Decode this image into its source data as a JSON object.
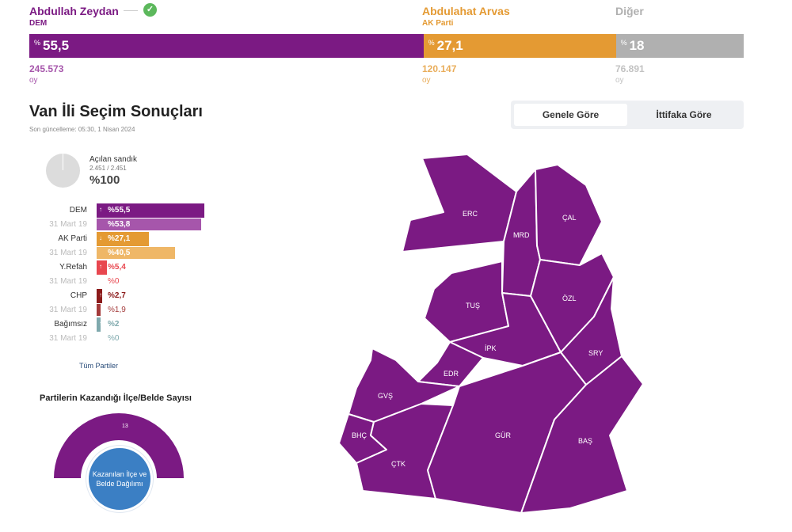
{
  "candidates": [
    {
      "name": "Abdullah Zeydan",
      "party": "DEM",
      "pct": "55,5",
      "pct_sign": "%",
      "votes": "245.573",
      "votes_unit": "oy",
      "color": "#7b1a83",
      "share": 55.5
    },
    {
      "name": "Abdulahat Arvas",
      "party": "AK Parti",
      "pct": "27,1",
      "pct_sign": "%",
      "votes": "120.147",
      "votes_unit": "oy",
      "color": "#e49a33",
      "share": 27.1
    },
    {
      "name": "Diğer",
      "party": "",
      "pct": "18",
      "pct_sign": "%",
      "votes": "76.891",
      "votes_unit": "oy",
      "color": "#b0b0b0",
      "share": 18
    }
  ],
  "winner_check": "✓",
  "title": "Van İli Seçim Sonuçları",
  "updated": "Son güncelleme: 05:30, 1 Nisan 2024",
  "toggle": {
    "general": "Genele Göre",
    "alliance": "İttifaka Göre"
  },
  "ballot_box": {
    "label": "Açılan sandık",
    "count": "2.451 / 2.451",
    "pct": "%100"
  },
  "parties": [
    {
      "name": "DEM",
      "pct": "%55,5",
      "prev_label": "31 Mart 19",
      "prev_pct": "%53,8",
      "color": "#7b1a83",
      "prev_color": "#a656ab",
      "share": 55.5,
      "prev_share": 53.8,
      "arrow": "↑"
    },
    {
      "name": "AK Parti",
      "pct": "%27,1",
      "prev_label": "31 Mart 19",
      "prev_pct": "%40,5",
      "color": "#e49a33",
      "prev_color": "#efb767",
      "share": 27.1,
      "prev_share": 40.5,
      "arrow": "↓"
    },
    {
      "name": "Y.Refah",
      "pct": "%5,4",
      "prev_label": "31 Mart 19",
      "prev_pct": "%0",
      "color": "#e8474f",
      "prev_color": "#e8474f",
      "share": 5.4,
      "prev_share": 0,
      "arrow": "↑"
    },
    {
      "name": "CHP",
      "pct": "%2,7",
      "prev_label": "31 Mart 19",
      "prev_pct": "%1,9",
      "color": "#8b1a1a",
      "prev_color": "#a33a3a",
      "share": 2.7,
      "prev_share": 1.9,
      "arrow": "↑"
    },
    {
      "name": "Bağımsız",
      "pct": "%2",
      "prev_label": "31 Mart 19",
      "prev_pct": "%0",
      "color": "#7fa9ad",
      "prev_color": "#7fa9ad",
      "share": 2,
      "prev_share": 0,
      "arrow": "↑"
    }
  ],
  "all_parties": "Tüm Partiler",
  "gauge": {
    "title": "Partilerin Kazandığı İlçe/Belde Sayısı",
    "count": "13",
    "color": "#7b1a83",
    "button_line1": "Kazanılan İlçe ve",
    "button_line2": "Belde Dağılımı"
  },
  "map": {
    "fill": "#7b1a83",
    "districts": [
      "ERC",
      "MRD",
      "ÇAL",
      "TUŞ",
      "ÖZL",
      "İPK",
      "SRY",
      "EDR",
      "GVŞ",
      "BHÇ",
      "ÇTK",
      "GÜR",
      "BAŞ"
    ]
  }
}
